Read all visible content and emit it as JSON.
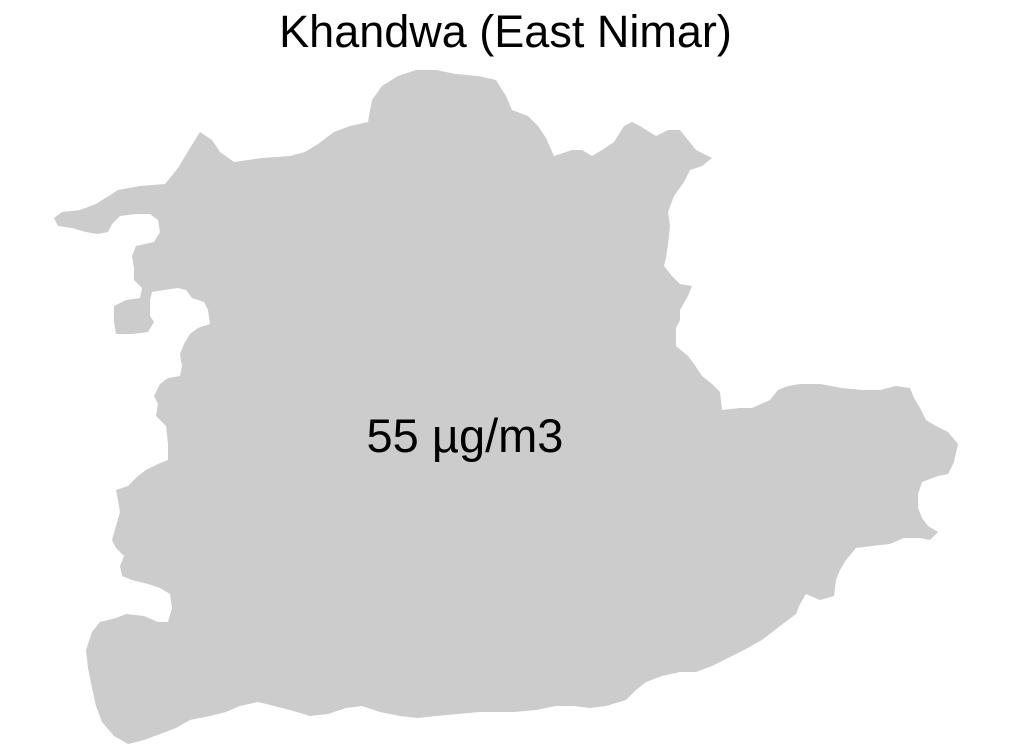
{
  "map": {
    "title": "Khandwa (East Nimar)",
    "region_fill": "#cccccc",
    "background": "#ffffff",
    "region_label": "55 µg/m3",
    "value": 55,
    "unit": "µg/m3"
  }
}
